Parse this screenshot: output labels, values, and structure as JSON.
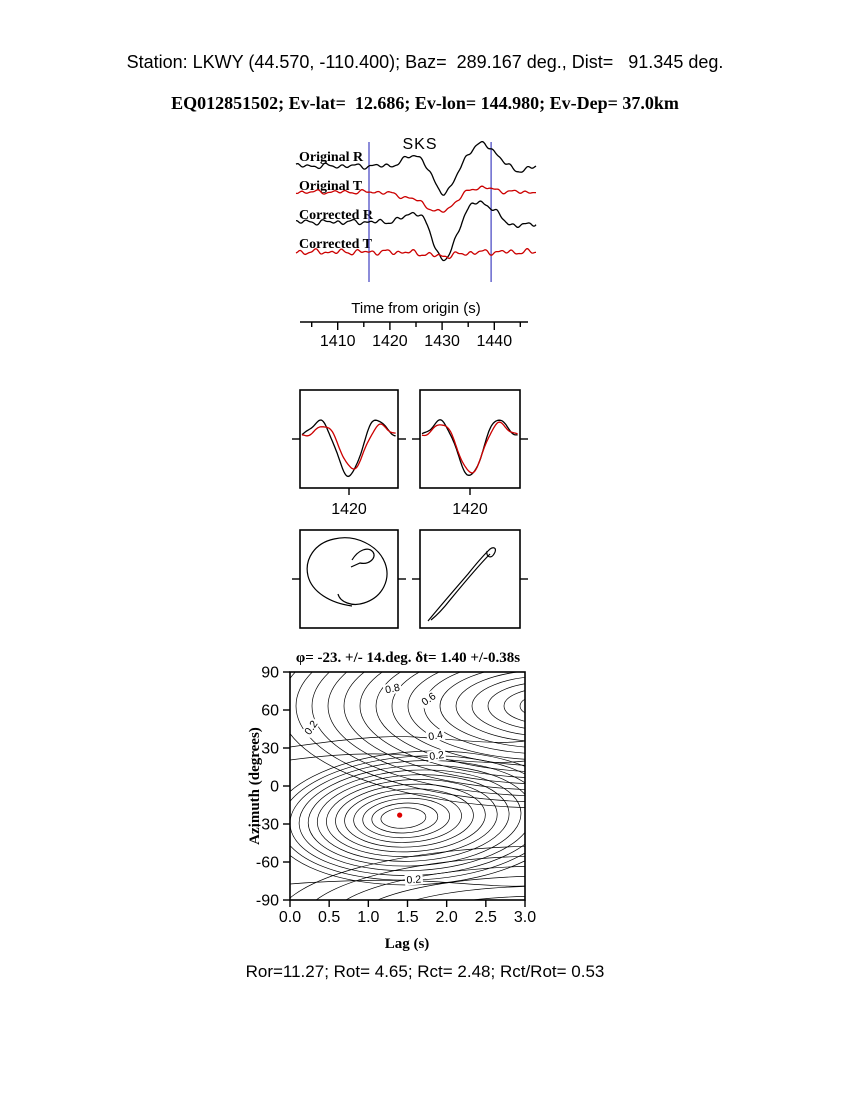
{
  "header": {
    "line1": "Station: LKWY (44.570, -110.400); Baz=  289.167 deg., Dist=   91.345 deg.",
    "line2": "EQ012851502; Ev-lat=  12.686; Ev-lon= 144.980; Ev-Dep= 37.0km",
    "station": {
      "code": "LKWY",
      "lat": 44.57,
      "lon": -110.4,
      "baz_deg": 289.167,
      "dist_deg": 91.345
    },
    "event": {
      "id": "EQ012851502",
      "lat": 12.686,
      "lon": 144.98,
      "depth_km": 37.0
    }
  },
  "footer": {
    "text": "Ror=11.27; Rot= 4.65; Rct= 2.48; Rct/Rot= 0.53"
  },
  "colors": {
    "black": "#000000",
    "red": "#cc0000",
    "window_blue": "#4040c0",
    "dot_red": "#dd0000",
    "background": "#ffffff"
  },
  "chart_data": {
    "type": "multi-panel",
    "panels": [
      "waveforms",
      "windowed-waveforms",
      "particle-motion",
      "error-surface-contour"
    ],
    "waveform_panel": {
      "phase_label": "SKS",
      "xlabel": "Time from origin (s)",
      "xticks": [
        1410,
        1420,
        1430,
        1440
      ],
      "t_range": [
        1402,
        1448
      ],
      "window_times": [
        1416.0,
        1439.4
      ],
      "traces": [
        {
          "name": "Original R",
          "color_key": "black",
          "noise": 1.5,
          "pulses": [
            [
              1425.0,
              2.0,
              12
            ],
            [
              1430.5,
              2.2,
              -28
            ],
            [
              1437.5,
              3.0,
              22
            ],
            [
              1444.0,
              2.0,
              -6
            ]
          ]
        },
        {
          "name": "Original T",
          "color_key": "red",
          "noise": 1.2,
          "pulses": [
            [
              1423.0,
              2.0,
              -4
            ],
            [
              1429.5,
              2.8,
              -20
            ],
            [
              1437.0,
              2.5,
              5
            ]
          ]
        },
        {
          "name": "Corrected R",
          "color_key": "black",
          "noise": 1.5,
          "pulses": [
            [
              1425.0,
              2.0,
              10
            ],
            [
              1430.5,
              2.0,
              -40
            ],
            [
              1437.0,
              3.0,
              20
            ],
            [
              1444.0,
              2.0,
              -5
            ]
          ]
        },
        {
          "name": "Corrected T",
          "color_key": "red",
          "noise": 1.6,
          "pulses": [
            [
              1430.0,
              3.0,
              -4
            ]
          ]
        }
      ]
    },
    "zoom_panels": [
      {
        "xtick": "1420",
        "traces": [
          {
            "color_key": "black",
            "pulses": [
              [
                0.2,
                0.09,
                16
              ],
              [
                0.5,
                0.11,
                -40
              ],
              [
                0.78,
                0.09,
                18
              ]
            ]
          },
          {
            "color_key": "red",
            "pulses": [
              [
                0.25,
                0.09,
                11
              ],
              [
                0.54,
                0.11,
                -33
              ],
              [
                0.82,
                0.09,
                12
              ]
            ]
          }
        ]
      },
      {
        "xtick": "1420",
        "traces": [
          {
            "color_key": "black",
            "pulses": [
              [
                0.2,
                0.09,
                16
              ],
              [
                0.5,
                0.11,
                -40
              ],
              [
                0.78,
                0.09,
                18
              ]
            ]
          },
          {
            "color_key": "red",
            "pulses": [
              [
                0.22,
                0.09,
                13
              ],
              [
                0.51,
                0.11,
                -37
              ],
              [
                0.79,
                0.09,
                14
              ]
            ]
          }
        ]
      }
    ],
    "particle_panels": [
      {
        "name": "particle-motion-original"
      },
      {
        "name": "particle-motion-corrected"
      }
    ],
    "contour_panel": {
      "title": "φ= -23. +/- 14.deg. δt= 1.40 +/-0.38s",
      "xlabel": "Lag (s)",
      "ylabel": "Azimuth (degrees)",
      "xlim": [
        0,
        3
      ],
      "ylim": [
        -90,
        90
      ],
      "xticks": [
        "0.0",
        "0.5",
        "1.0",
        "1.5",
        "2.0",
        "2.5",
        "3.0"
      ],
      "yticks": [
        90,
        60,
        30,
        0,
        -30,
        -60,
        -90
      ],
      "contour_levels": [
        0.2,
        0.4,
        0.6,
        0.8
      ],
      "contour_labels": [
        "0.8",
        "0.6",
        "0.2",
        "0.4",
        "0.2",
        "0.2"
      ],
      "best_fit": {
        "lag_s": 1.4,
        "lag_err_s": 0.38,
        "azimuth_deg": -23,
        "azimuth_err_deg": 14
      }
    },
    "measurements": {
      "phi_deg": -23,
      "phi_err_deg": 14,
      "dt_s": 1.4,
      "dt_err_s": 0.38,
      "Ror": 11.27,
      "Rot": 4.65,
      "Rct": 2.48,
      "Rct_over_Rot": 0.53
    }
  }
}
